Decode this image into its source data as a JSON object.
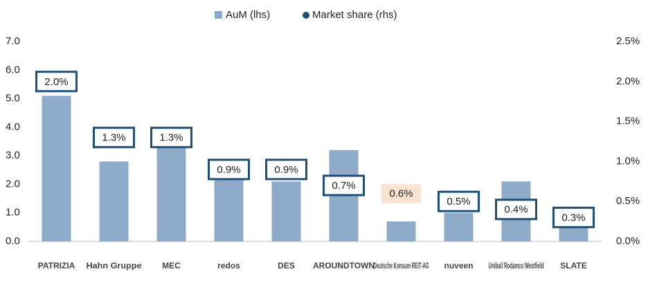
{
  "chart_data": {
    "type": "bar",
    "categories": [
      "PATRIZIA",
      "Hahn Gruppe",
      "MEC",
      "redos",
      "DES",
      "AROUNDTOWN",
      "Deutsche Konsum REIT-AG",
      "nuveen",
      "Unibail Rodamco Westfield",
      "SLATE"
    ],
    "series": [
      {
        "name": "AuM (lhs)",
        "color": "#8eabc9",
        "values": [
          5.1,
          2.8,
          3.3,
          2.3,
          2.1,
          3.2,
          0.7,
          1.0,
          2.1,
          0.5
        ]
      },
      {
        "name": "Market share (rhs)",
        "color": "#1f4e79",
        "axis": "y2",
        "values": [
          2.0,
          1.3,
          1.3,
          0.9,
          0.9,
          0.7,
          0.6,
          0.5,
          0.4,
          0.3
        ],
        "value_labels": [
          "2.0%",
          "1.3%",
          "1.3%",
          "0.9%",
          "0.9%",
          "0.7%",
          "0.6%",
          "0.5%",
          "0.4%",
          "0.3%"
        ],
        "label_fills": [
          "#ffffff",
          "#ffffff",
          "#ffffff",
          "#ffffff",
          "#ffffff",
          "#ffffff",
          "#fbe5d0",
          "#ffffff",
          "#ffffff",
          "#ffffff"
        ]
      }
    ],
    "ylim": [
      0,
      7
    ],
    "yticks": [
      {
        "value": 0,
        "label": "0.0"
      },
      {
        "value": 1,
        "label": "1.0"
      },
      {
        "value": 2,
        "label": "2.0"
      },
      {
        "value": 3,
        "label": "3.0"
      },
      {
        "value": 4,
        "label": "4.0"
      },
      {
        "value": 5,
        "label": "5.0"
      },
      {
        "value": 6,
        "label": "6.0"
      },
      {
        "value": 7,
        "label": "7.0"
      }
    ],
    "y2lim": [
      0,
      2.5
    ],
    "y2ticks": [
      {
        "value": 0,
        "label": "0.0%"
      },
      {
        "value": 0.5,
        "label": "0.5%"
      },
      {
        "value": 1,
        "label": "1.0%"
      },
      {
        "value": 1.5,
        "label": "1.5%"
      },
      {
        "value": 2,
        "label": "2.0%"
      },
      {
        "value": 2.5,
        "label": "2.5%"
      }
    ],
    "legend": "top"
  }
}
